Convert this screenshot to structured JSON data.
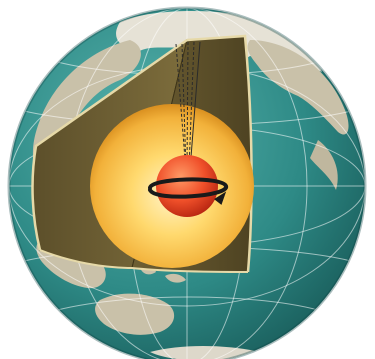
{
  "diagram": {
    "subject": "earth-cutaway",
    "layers": [
      "crust",
      "mantle",
      "outer-core",
      "inner-core"
    ],
    "colors": {
      "ocean": "#2e8a86",
      "ocean_dark": "#1f6f6c",
      "land": "#c7bfa8",
      "land_dark": "#a99f86",
      "ice": "#e9e6dc",
      "mantle": "#7a6a3a",
      "mantle_dark": "#5a4d29",
      "outer_core_light": "#fff3c2",
      "outer_core_mid": "#ffd060",
      "outer_core_dark": "#e8a326",
      "inner_core_light": "#ff8a5a",
      "inner_core_dark": "#d8331a",
      "grid": "#ffffff",
      "rotation_arrow": "#1a1a1a",
      "seismic_rays": "#2b2b2b"
    },
    "icons": [
      "rotation-arrow-icon"
    ]
  }
}
